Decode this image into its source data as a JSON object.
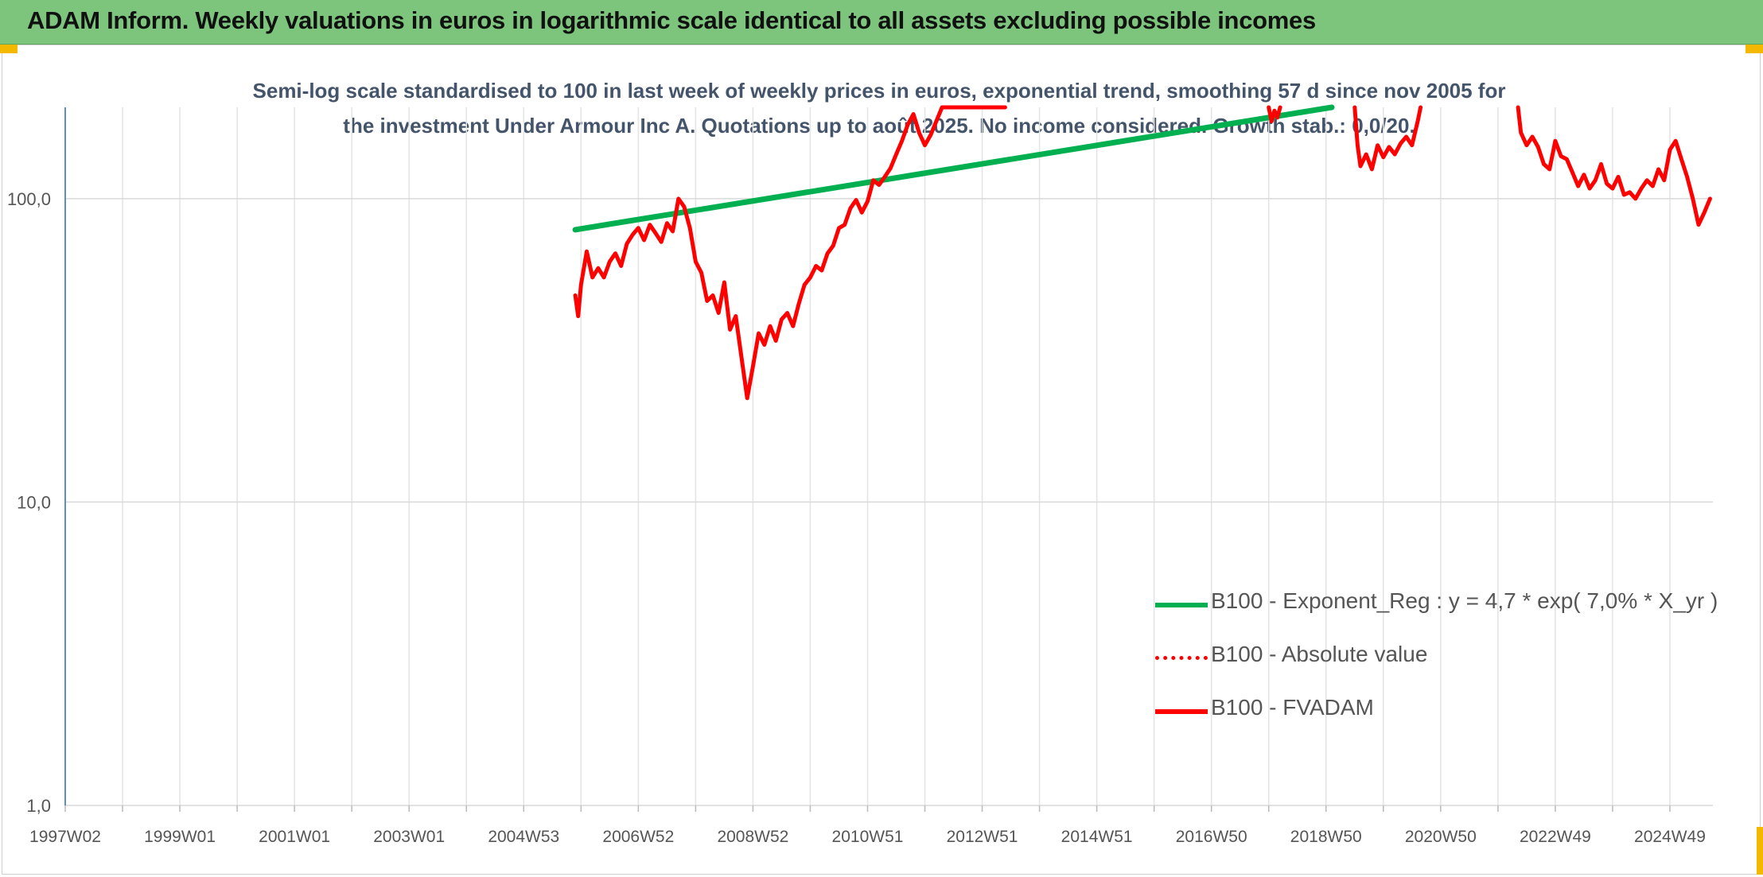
{
  "header": {
    "title": "ADAM Inform. Weekly valuations in euros in logarithmic scale identical to all assets excluding possible incomes"
  },
  "chart_data": {
    "type": "line",
    "title": "Semi-log scale standardised to 100 in last week of weekly prices in euros, exponential trend, smoothing 57 d since nov 2005 for the investment Under Armour Inc A. Quotations up to août 2025. No income considered. Growth stab.: 0,0/20.",
    "xlabel": "",
    "ylabel": "",
    "y_scale": "log",
    "ylim": [
      1,
      200
    ],
    "xlim": [
      1997.0,
      2025.75
    ],
    "grid": true,
    "legend_position": "bottom-right",
    "y_ticks": [
      "1,0",
      "10,0",
      "100,0"
    ],
    "y_tick_values": [
      1,
      10,
      100
    ],
    "x_ticks": [
      "1997W02",
      "1999W01",
      "2001W01",
      "2003W01",
      "2004W53",
      "2006W52",
      "2008W52",
      "2010W51",
      "2012W51",
      "2014W51",
      "2016W50",
      "2018W50",
      "2020W50",
      "2022W49",
      "2024W49"
    ],
    "x_tick_values": [
      1997.0,
      1999.0,
      2001.0,
      2003.0,
      2005.0,
      2007.0,
      2009.0,
      2011.0,
      2013.0,
      2015.0,
      2017.0,
      2019.0,
      2021.0,
      2023.0,
      2025.0
    ],
    "series": [
      {
        "name": "B100 - Exponent_Reg : y = 4,7 * exp( 7,0% *  X_yr )",
        "color": "#00b050",
        "style": "solid",
        "x": [
          2005.9,
          2019.1
        ],
        "y": [
          79,
          200
        ]
      },
      {
        "name": "B100 - Absolute value",
        "color": "#ff0000",
        "style": "dotted",
        "x": [],
        "y": []
      },
      {
        "name": "B100 - FVADAM",
        "color": "#ff0000",
        "style": "solid",
        "x": [
          2005.9,
          2005.95,
          2006.0,
          2006.1,
          2006.2,
          2006.3,
          2006.4,
          2006.5,
          2006.6,
          2006.7,
          2006.8,
          2006.9,
          2007.0,
          2007.1,
          2007.2,
          2007.3,
          2007.4,
          2007.5,
          2007.6,
          2007.7,
          2007.8,
          2007.9,
          2008.0,
          2008.1,
          2008.2,
          2008.3,
          2008.4,
          2008.5,
          2008.6,
          2008.7,
          2008.8,
          2008.9,
          2009.0,
          2009.1,
          2009.2,
          2009.3,
          2009.4,
          2009.5,
          2009.6,
          2009.7,
          2009.8,
          2009.9,
          2010.0,
          2010.1,
          2010.2,
          2010.3,
          2010.4,
          2010.5,
          2010.6,
          2010.7,
          2010.8,
          2010.9,
          2011.0,
          2011.1,
          2011.2,
          2011.3,
          2011.4,
          2011.5,
          2011.6,
          2011.7,
          2011.8,
          2011.9,
          2012.0,
          2012.1,
          2012.2,
          2012.3,
          2012.4,
          2012.5,
          2012.6,
          2012.7,
          2012.8,
          2012.9,
          2013.0,
          2013.1,
          2013.2,
          2013.3,
          2013.4
        ],
        "y": [
          48,
          41,
          52,
          67,
          55,
          59,
          55,
          62,
          66,
          60,
          71,
          76,
          80,
          73,
          82,
          77,
          72,
          83,
          78,
          100,
          94,
          80,
          62,
          57,
          46,
          48,
          42,
          53,
          37,
          41,
          30,
          22,
          28,
          36,
          33,
          38,
          34,
          40,
          42,
          38,
          45,
          52,
          55,
          60,
          58,
          66,
          70,
          80,
          82,
          93,
          99,
          90,
          98,
          115,
          111,
          118,
          126,
          140,
          155,
          175,
          190,
          165,
          150,
          162,
          180,
          200,
          200,
          200,
          200,
          200,
          200,
          200,
          200,
          200,
          200,
          200,
          200
        ]
      },
      {
        "name": "",
        "color": "#ff0000",
        "style": "solid",
        "x": [
          2018.0,
          2018.05,
          2018.1,
          2018.15,
          2018.2
        ],
        "y": [
          200,
          180,
          195,
          185,
          200
        ]
      },
      {
        "name": "",
        "color": "#ff0000",
        "style": "solid",
        "x": [
          2019.5,
          2019.55,
          2019.6,
          2019.7,
          2019.8,
          2019.9,
          2020.0,
          2020.1,
          2020.2,
          2020.3,
          2020.4,
          2020.5,
          2020.6,
          2020.65
        ],
        "y": [
          200,
          150,
          128,
          140,
          125,
          150,
          137,
          148,
          140,
          152,
          160,
          150,
          180,
          200
        ]
      },
      {
        "name": "",
        "color": "#ff0000",
        "style": "solid",
        "x": [
          2022.35,
          2022.4,
          2022.5,
          2022.6,
          2022.7,
          2022.8,
          2022.9,
          2023.0,
          2023.1,
          2023.2,
          2023.3,
          2023.4,
          2023.5,
          2023.6,
          2023.7,
          2023.8,
          2023.9,
          2024.0,
          2024.1,
          2024.2,
          2024.3,
          2024.4,
          2024.5,
          2024.6,
          2024.7,
          2024.8,
          2024.9,
          2025.0,
          2025.1,
          2025.2,
          2025.3,
          2025.4,
          2025.5,
          2025.6,
          2025.7
        ],
        "y": [
          200,
          165,
          150,
          160,
          148,
          130,
          125,
          155,
          138,
          135,
          122,
          110,
          120,
          108,
          115,
          130,
          112,
          108,
          118,
          103,
          105,
          100,
          108,
          115,
          110,
          125,
          115,
          145,
          155,
          135,
          118,
          100,
          82,
          90,
          100
        ]
      }
    ]
  }
}
